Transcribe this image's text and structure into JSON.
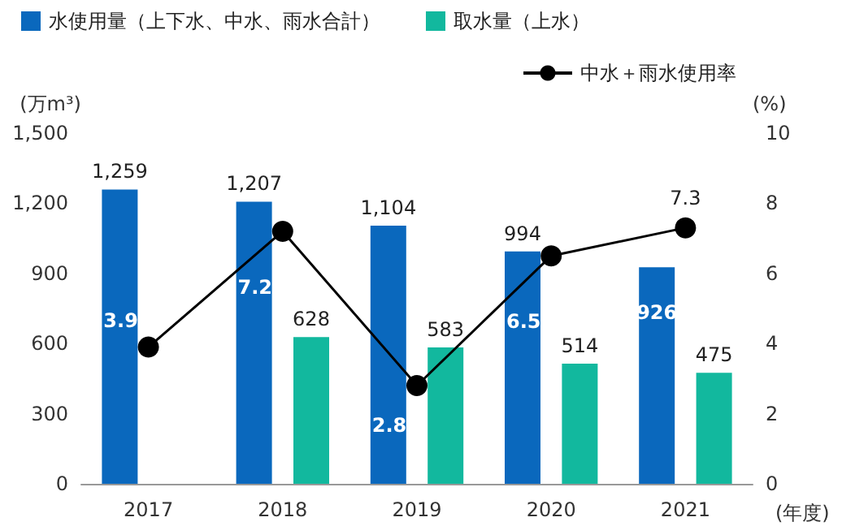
{
  "chart_data": {
    "type": "bar",
    "categories": [
      "2017",
      "2018",
      "2019",
      "2020",
      "2021"
    ],
    "series": [
      {
        "name": "水使用量（上下水、中水、雨水合計）",
        "color": "#0a68bd",
        "values": [
          1259,
          1207,
          1104,
          994,
          926
        ],
        "value_labels": [
          "1,259",
          "1,207",
          "1,104",
          "994",
          "926"
        ]
      },
      {
        "name": "取水量（上水）",
        "color": "#12b89e",
        "values": [
          null,
          628,
          583,
          514,
          475
        ],
        "value_labels": [
          null,
          "628",
          "583",
          "514",
          "475"
        ]
      },
      {
        "name": "中水＋雨水使用率",
        "type": "line",
        "axis": "y2",
        "color": "#000000",
        "values": [
          3.9,
          7.2,
          2.8,
          6.5,
          7.3
        ],
        "value_labels": [
          "3.9",
          "7.2",
          "2.8",
          "6.5",
          "7.3"
        ]
      }
    ],
    "ylabel": "(万m³)",
    "y2label": "(%)",
    "xlabel": "(年度)",
    "ylim": [
      0,
      1500
    ],
    "yticks": [
      0,
      300,
      600,
      900,
      {
        "value": 1200,
        "label": "1,200"
      },
      {
        "value": 1500,
        "label": "1,500"
      }
    ],
    "y2lim": [
      0,
      10
    ],
    "y2ticks": [
      0,
      2,
      4,
      6,
      8,
      10
    ],
    "legend": "top",
    "marker": "circle",
    "grid": false
  }
}
